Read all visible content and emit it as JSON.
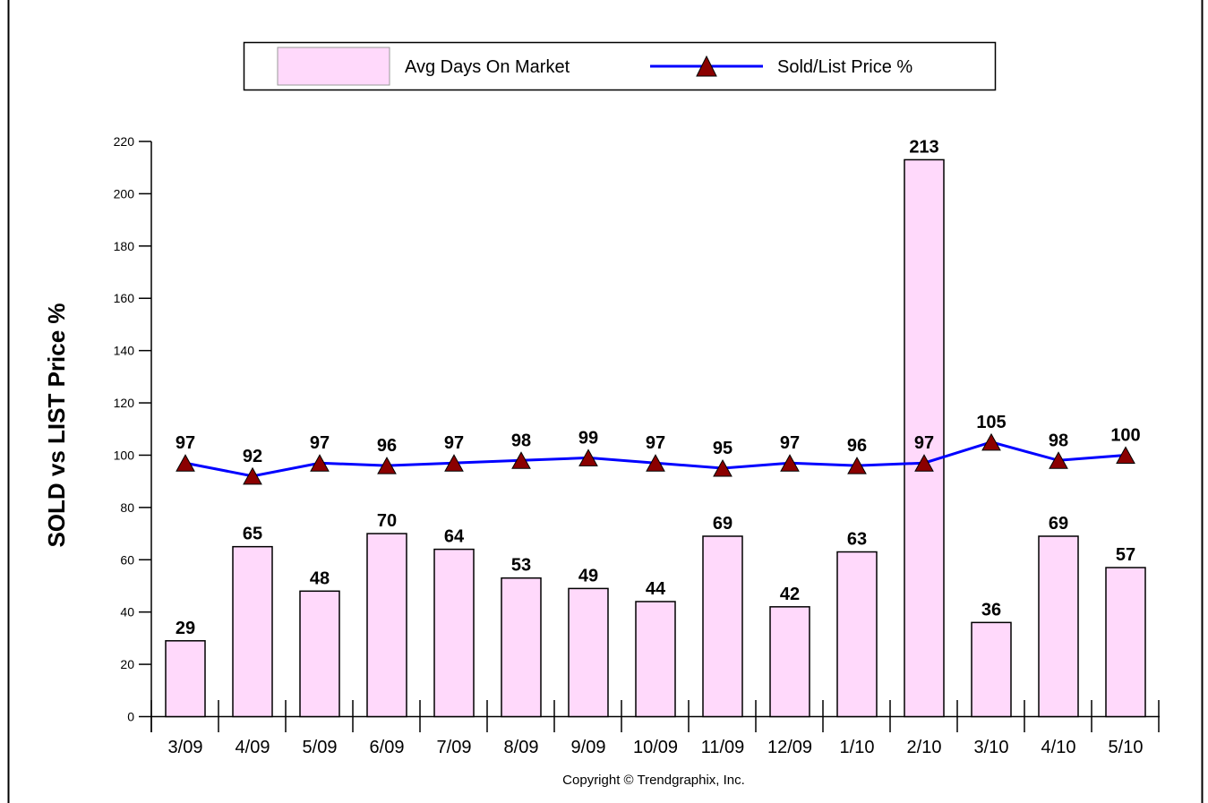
{
  "legend": {
    "bar_label": "Avg Days On Market",
    "line_label": "Sold/List Price %"
  },
  "copyright": "Copyright © Trendgraphix, Inc.",
  "colors": {
    "bar_fill": "#ffd9fb",
    "bar_stroke": "#000000",
    "line": "#0000ff",
    "marker": "#8b0000"
  },
  "chart_data": {
    "type": "bar",
    "title": "",
    "xlabel": "",
    "ylabel": "SOLD vs LIST Price %",
    "ylim": [
      0,
      220
    ],
    "yticks": [
      0,
      20,
      40,
      60,
      80,
      100,
      120,
      140,
      160,
      180,
      200,
      220
    ],
    "grid": false,
    "legend_position": "top",
    "categories": [
      "3/09",
      "4/09",
      "5/09",
      "6/09",
      "7/09",
      "8/09",
      "9/09",
      "10/09",
      "11/09",
      "12/09",
      "1/10",
      "2/10",
      "3/10",
      "4/10",
      "5/10"
    ],
    "series": [
      {
        "name": "Avg Days On Market",
        "type": "bar",
        "values": [
          29,
          65,
          48,
          70,
          64,
          53,
          49,
          44,
          69,
          42,
          63,
          213,
          36,
          69,
          57
        ]
      },
      {
        "name": "Sold/List Price %",
        "type": "line",
        "values": [
          97,
          92,
          97,
          96,
          97,
          98,
          99,
          97,
          95,
          97,
          96,
          97,
          105,
          98,
          100
        ]
      }
    ]
  }
}
